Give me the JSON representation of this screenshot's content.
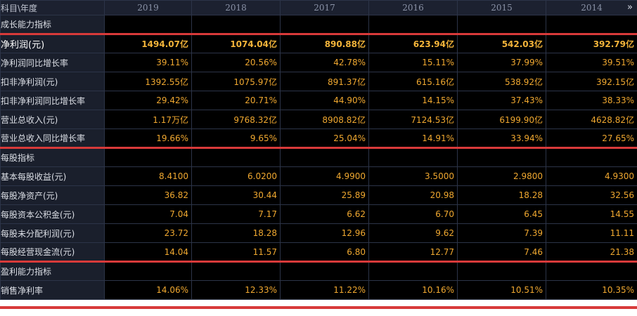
{
  "header": {
    "corner_label": "科目\\年度",
    "years": [
      "2019",
      "2018",
      "2017",
      "2016",
      "2015",
      "2014"
    ],
    "more_icon": "double-chevron-right-icon"
  },
  "sections": [
    {
      "title": "成长能力指标",
      "rows": [
        {
          "label": "净利润(元)",
          "values": [
            "1494.07亿",
            "1074.04亿",
            "890.88亿",
            "623.94亿",
            "542.03亿",
            "392.79亿"
          ]
        },
        {
          "label": "净利润同比增长率",
          "values": [
            "39.11%",
            "20.56%",
            "42.78%",
            "15.11%",
            "37.99%",
            "39.51%"
          ]
        },
        {
          "label": "扣非净利润(元)",
          "values": [
            "1392.55亿",
            "1075.97亿",
            "891.37亿",
            "615.16亿",
            "538.92亿",
            "392.15亿"
          ]
        },
        {
          "label": "扣非净利润同比增长率",
          "values": [
            "29.42%",
            "20.71%",
            "44.90%",
            "14.15%",
            "37.43%",
            "38.33%"
          ]
        },
        {
          "label": "营业总收入(元)",
          "values": [
            "1.17万亿",
            "9768.32亿",
            "8908.82亿",
            "7124.53亿",
            "6199.90亿",
            "4628.82亿"
          ]
        },
        {
          "label": "营业总收入同比增长率",
          "values": [
            "19.66%",
            "9.65%",
            "25.04%",
            "14.91%",
            "33.94%",
            "27.65%"
          ]
        }
      ]
    },
    {
      "title": "每股指标",
      "rows": [
        {
          "label": "基本每股收益(元)",
          "values": [
            "8.4100",
            "6.0200",
            "4.9900",
            "3.5000",
            "2.9800",
            "4.9300"
          ]
        },
        {
          "label": "每股净资产(元)",
          "values": [
            "36.82",
            "30.44",
            "25.89",
            "20.98",
            "18.28",
            "32.56"
          ]
        },
        {
          "label": "每股资本公积金(元)",
          "values": [
            "7.04",
            "7.17",
            "6.62",
            "6.70",
            "6.45",
            "14.55"
          ]
        },
        {
          "label": "每股未分配利润(元)",
          "values": [
            "23.72",
            "18.28",
            "12.96",
            "9.62",
            "7.39",
            "11.11"
          ]
        },
        {
          "label": "每股经营现金流(元)",
          "values": [
            "14.04",
            "11.57",
            "6.80",
            "12.77",
            "7.46",
            "21.38"
          ]
        }
      ]
    },
    {
      "title": "盈利能力指标",
      "rows": [
        {
          "label": "销售净利率",
          "values": [
            "14.06%",
            "12.33%",
            "11.22%",
            "10.16%",
            "10.51%",
            "10.35%"
          ]
        }
      ]
    }
  ],
  "colors": {
    "value_text": "#f0a830",
    "separator": "#d83a3a",
    "label_bg": "#1a1f2c",
    "value_bg": "#000000"
  }
}
